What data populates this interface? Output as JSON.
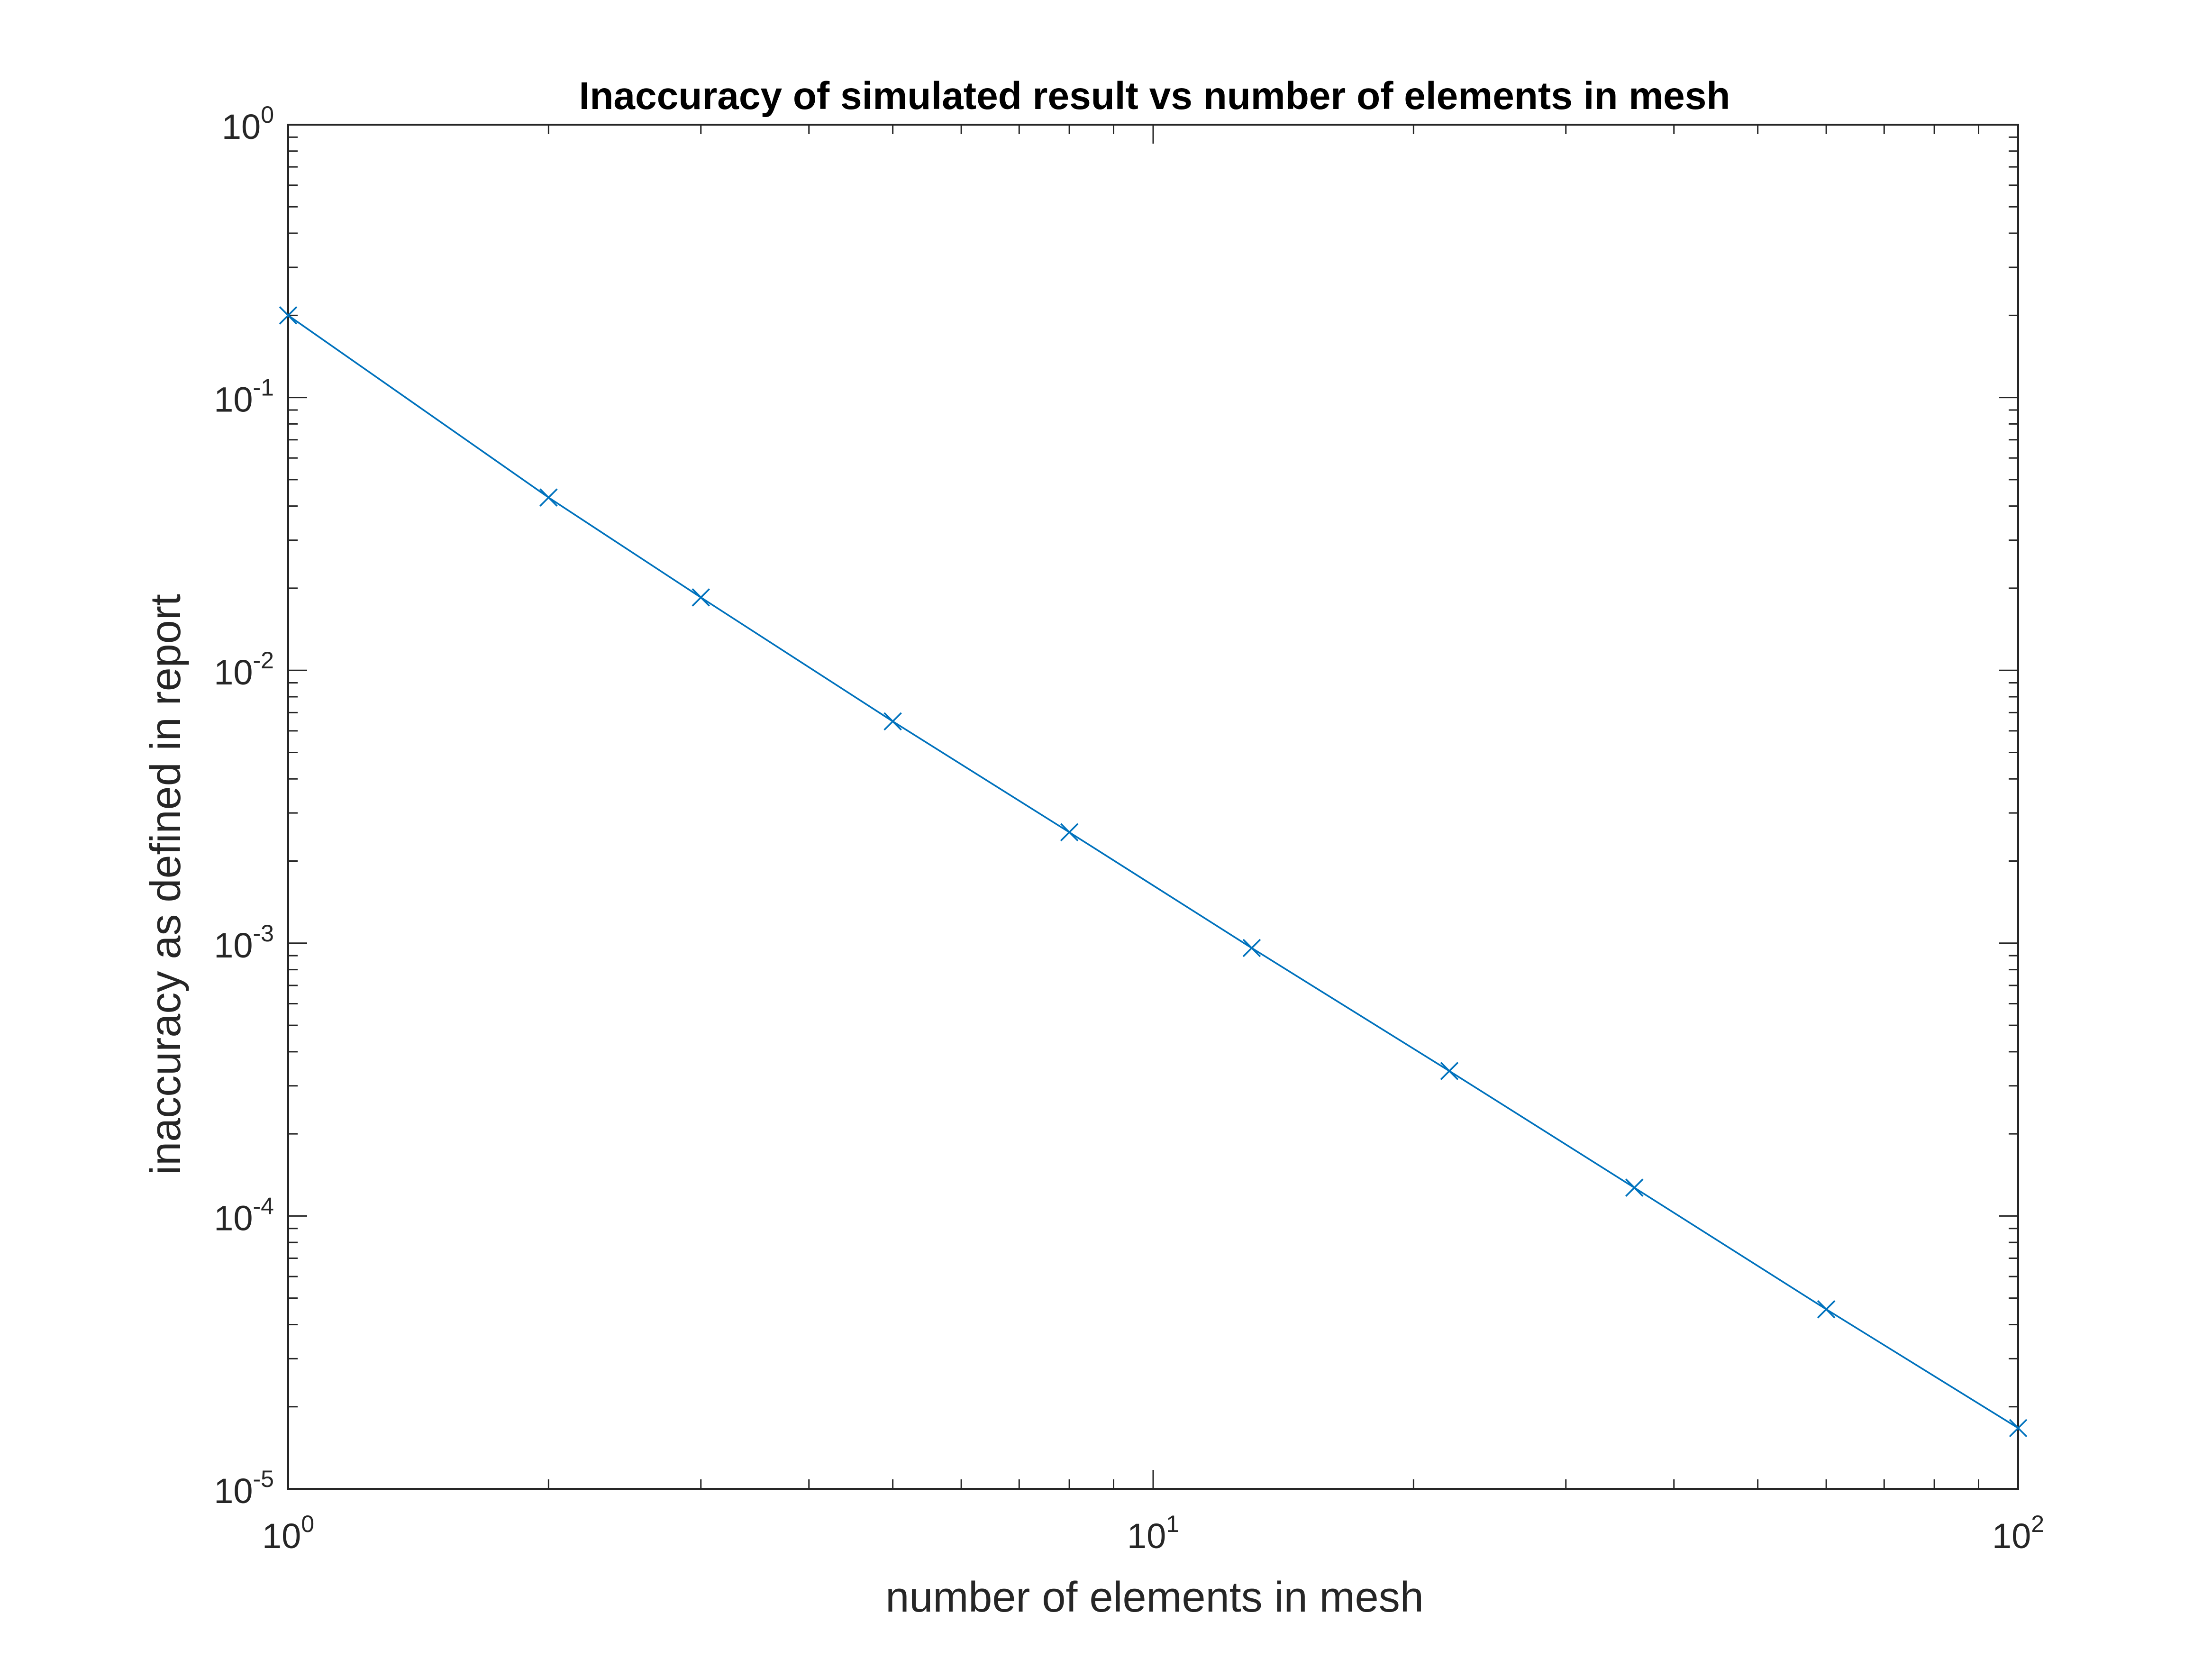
{
  "chart_data": {
    "type": "line",
    "title": "Inaccuracy of simulated result vs number of elements in mesh",
    "xlabel": "number of elements in mesh",
    "ylabel": "inaccuracy as defined in report",
    "xscale": "log",
    "yscale": "log",
    "xlim": [
      1,
      100
    ],
    "ylim": [
      1e-05,
      1
    ],
    "grid": false,
    "legend": "none",
    "marker": "x",
    "color": "#0072BD",
    "x_ticks": [
      {
        "value": 1,
        "base": "10",
        "exp": "0"
      },
      {
        "value": 10,
        "base": "10",
        "exp": "1"
      },
      {
        "value": 100,
        "base": "10",
        "exp": "2"
      }
    ],
    "y_ticks": [
      {
        "value": 1,
        "base": "10",
        "exp": "0"
      },
      {
        "value": 0.1,
        "base": "10",
        "exp": "-1"
      },
      {
        "value": 0.01,
        "base": "10",
        "exp": "-2"
      },
      {
        "value": 0.001,
        "base": "10",
        "exp": "-3"
      },
      {
        "value": 0.0001,
        "base": "10",
        "exp": "-4"
      },
      {
        "value": 1e-05,
        "base": "10",
        "exp": "-5"
      }
    ],
    "series": [
      {
        "x": [
          1,
          2,
          3,
          5,
          8,
          13,
          22,
          36,
          60,
          100
        ],
        "y": [
          0.2,
          0.043,
          0.0185,
          0.0065,
          0.00255,
          0.00096,
          0.00034,
          0.000127,
          4.55e-05,
          1.67e-05
        ]
      }
    ]
  }
}
